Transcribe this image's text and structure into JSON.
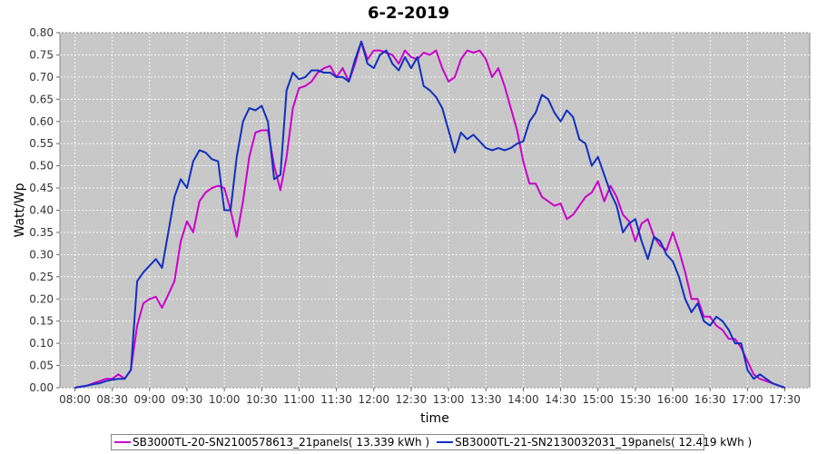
{
  "chart_data": {
    "type": "line",
    "title": "6-2-2019",
    "xlabel": "time",
    "ylabel": "Watt/Wp",
    "ylim": [
      0,
      0.8
    ],
    "xlim": [
      "07:48",
      "17:50"
    ],
    "grid": true,
    "legend_position": "bottom",
    "background": "#c8c8c8",
    "x_ticks": [
      "08:00",
      "08:30",
      "09:00",
      "09:30",
      "10:00",
      "10:30",
      "11:00",
      "11:30",
      "12:00",
      "12:30",
      "13:00",
      "13:30",
      "14:00",
      "14:30",
      "15:00",
      "15:30",
      "16:00",
      "16:30",
      "17:00",
      "17:30"
    ],
    "y_ticks": [
      "0.00",
      "0.05",
      "0.10",
      "0.15",
      "0.20",
      "0.25",
      "0.30",
      "0.35",
      "0.40",
      "0.45",
      "0.50",
      "0.55",
      "0.60",
      "0.65",
      "0.70",
      "0.75",
      "0.80"
    ],
    "series": [
      {
        "name": "SB3000TL-20-SN2100578613_21panels( 13.339 kWh )",
        "color": "#cc00cc",
        "points": [
          [
            "08:00",
            0.0
          ],
          [
            "08:10",
            0.005
          ],
          [
            "08:15",
            0.01
          ],
          [
            "08:20",
            0.015
          ],
          [
            "08:25",
            0.02
          ],
          [
            "08:30",
            0.02
          ],
          [
            "08:35",
            0.03
          ],
          [
            "08:40",
            0.02
          ],
          [
            "08:45",
            0.04
          ],
          [
            "08:50",
            0.14
          ],
          [
            "08:55",
            0.19
          ],
          [
            "09:00",
            0.2
          ],
          [
            "09:05",
            0.205
          ],
          [
            "09:10",
            0.18
          ],
          [
            "09:15",
            0.21
          ],
          [
            "09:20",
            0.24
          ],
          [
            "09:25",
            0.33
          ],
          [
            "09:30",
            0.375
          ],
          [
            "09:35",
            0.35
          ],
          [
            "09:40",
            0.42
          ],
          [
            "09:45",
            0.44
          ],
          [
            "09:50",
            0.45
          ],
          [
            "09:55",
            0.455
          ],
          [
            "10:00",
            0.45
          ],
          [
            "10:05",
            0.4
          ],
          [
            "10:10",
            0.34
          ],
          [
            "10:15",
            0.42
          ],
          [
            "10:20",
            0.52
          ],
          [
            "10:25",
            0.575
          ],
          [
            "10:30",
            0.58
          ],
          [
            "10:35",
            0.58
          ],
          [
            "10:40",
            0.5
          ],
          [
            "10:45",
            0.445
          ],
          [
            "10:50",
            0.52
          ],
          [
            "10:55",
            0.63
          ],
          [
            "11:00",
            0.675
          ],
          [
            "11:05",
            0.68
          ],
          [
            "11:10",
            0.69
          ],
          [
            "11:15",
            0.71
          ],
          [
            "11:20",
            0.72
          ],
          [
            "11:25",
            0.725
          ],
          [
            "11:30",
            0.7
          ],
          [
            "11:35",
            0.72
          ],
          [
            "11:40",
            0.69
          ],
          [
            "11:45",
            0.73
          ],
          [
            "11:50",
            0.78
          ],
          [
            "11:55",
            0.74
          ],
          [
            "12:00",
            0.76
          ],
          [
            "12:05",
            0.76
          ],
          [
            "12:10",
            0.755
          ],
          [
            "12:15",
            0.75
          ],
          [
            "12:20",
            0.73
          ],
          [
            "12:25",
            0.76
          ],
          [
            "12:30",
            0.745
          ],
          [
            "12:35",
            0.74
          ],
          [
            "12:40",
            0.755
          ],
          [
            "12:45",
            0.75
          ],
          [
            "12:50",
            0.76
          ],
          [
            "12:55",
            0.72
          ],
          [
            "13:00",
            0.69
          ],
          [
            "13:05",
            0.7
          ],
          [
            "13:10",
            0.74
          ],
          [
            "13:15",
            0.76
          ],
          [
            "13:20",
            0.755
          ],
          [
            "13:25",
            0.76
          ],
          [
            "13:30",
            0.74
          ],
          [
            "13:35",
            0.7
          ],
          [
            "13:40",
            0.72
          ],
          [
            "13:45",
            0.68
          ],
          [
            "13:50",
            0.63
          ],
          [
            "13:55",
            0.58
          ],
          [
            "14:00",
            0.51
          ],
          [
            "14:05",
            0.46
          ],
          [
            "14:10",
            0.46
          ],
          [
            "14:15",
            0.43
          ],
          [
            "14:20",
            0.42
          ],
          [
            "14:25",
            0.41
          ],
          [
            "14:30",
            0.415
          ],
          [
            "14:35",
            0.38
          ],
          [
            "14:40",
            0.39
          ],
          [
            "14:45",
            0.41
          ],
          [
            "14:50",
            0.43
          ],
          [
            "14:55",
            0.44
          ],
          [
            "15:00",
            0.465
          ],
          [
            "15:05",
            0.42
          ],
          [
            "15:10",
            0.455
          ],
          [
            "15:15",
            0.43
          ],
          [
            "15:20",
            0.39
          ],
          [
            "15:25",
            0.375
          ],
          [
            "15:30",
            0.33
          ],
          [
            "15:35",
            0.37
          ],
          [
            "15:40",
            0.38
          ],
          [
            "15:45",
            0.34
          ],
          [
            "15:50",
            0.32
          ],
          [
            "15:55",
            0.31
          ],
          [
            "16:00",
            0.35
          ],
          [
            "16:05",
            0.31
          ],
          [
            "16:10",
            0.26
          ],
          [
            "16:15",
            0.2
          ],
          [
            "16:20",
            0.2
          ],
          [
            "16:25",
            0.16
          ],
          [
            "16:30",
            0.16
          ],
          [
            "16:35",
            0.14
          ],
          [
            "16:40",
            0.13
          ],
          [
            "16:45",
            0.11
          ],
          [
            "16:50",
            0.11
          ],
          [
            "16:55",
            0.09
          ],
          [
            "17:00",
            0.06
          ],
          [
            "17:05",
            0.03
          ],
          [
            "17:10",
            0.02
          ],
          [
            "17:15",
            0.015
          ],
          [
            "17:20",
            0.01
          ],
          [
            "17:25",
            0.005
          ],
          [
            "17:30",
            0.0
          ]
        ]
      },
      {
        "name": "SB3000TL-21-SN2130032031_19panels( 12.419 kWh )",
        "color": "#1030c0",
        "points": [
          [
            "08:00",
            0.0
          ],
          [
            "08:10",
            0.005
          ],
          [
            "08:15",
            0.008
          ],
          [
            "08:20",
            0.01
          ],
          [
            "08:25",
            0.015
          ],
          [
            "08:30",
            0.018
          ],
          [
            "08:35",
            0.02
          ],
          [
            "08:40",
            0.02
          ],
          [
            "08:45",
            0.04
          ],
          [
            "08:50",
            0.24
          ],
          [
            "08:55",
            0.26
          ],
          [
            "09:00",
            0.275
          ],
          [
            "09:05",
            0.29
          ],
          [
            "09:10",
            0.27
          ],
          [
            "09:15",
            0.35
          ],
          [
            "09:20",
            0.43
          ],
          [
            "09:25",
            0.47
          ],
          [
            "09:30",
            0.45
          ],
          [
            "09:35",
            0.51
          ],
          [
            "09:40",
            0.535
          ],
          [
            "09:45",
            0.53
          ],
          [
            "09:50",
            0.515
          ],
          [
            "09:55",
            0.51
          ],
          [
            "10:00",
            0.4
          ],
          [
            "10:05",
            0.4
          ],
          [
            "10:10",
            0.52
          ],
          [
            "10:15",
            0.6
          ],
          [
            "10:20",
            0.63
          ],
          [
            "10:25",
            0.625
          ],
          [
            "10:30",
            0.635
          ],
          [
            "10:35",
            0.6
          ],
          [
            "10:40",
            0.47
          ],
          [
            "10:45",
            0.48
          ],
          [
            "10:50",
            0.67
          ],
          [
            "10:55",
            0.71
          ],
          [
            "11:00",
            0.695
          ],
          [
            "11:05",
            0.7
          ],
          [
            "11:10",
            0.715
          ],
          [
            "11:15",
            0.715
          ],
          [
            "11:20",
            0.71
          ],
          [
            "11:25",
            0.71
          ],
          [
            "11:30",
            0.7
          ],
          [
            "11:35",
            0.7
          ],
          [
            "11:40",
            0.69
          ],
          [
            "11:45",
            0.74
          ],
          [
            "11:50",
            0.78
          ],
          [
            "11:55",
            0.73
          ],
          [
            "12:00",
            0.72
          ],
          [
            "12:05",
            0.75
          ],
          [
            "12:10",
            0.76
          ],
          [
            "12:15",
            0.73
          ],
          [
            "12:20",
            0.715
          ],
          [
            "12:25",
            0.745
          ],
          [
            "12:30",
            0.72
          ],
          [
            "12:35",
            0.745
          ],
          [
            "12:40",
            0.68
          ],
          [
            "12:45",
            0.67
          ],
          [
            "12:50",
            0.655
          ],
          [
            "12:55",
            0.63
          ],
          [
            "13:00",
            0.58
          ],
          [
            "13:05",
            0.53
          ],
          [
            "13:10",
            0.575
          ],
          [
            "13:15",
            0.56
          ],
          [
            "13:20",
            0.57
          ],
          [
            "13:25",
            0.555
          ],
          [
            "13:30",
            0.54
          ],
          [
            "13:35",
            0.535
          ],
          [
            "13:40",
            0.54
          ],
          [
            "13:45",
            0.535
          ],
          [
            "13:50",
            0.54
          ],
          [
            "13:55",
            0.55
          ],
          [
            "14:00",
            0.555
          ],
          [
            "14:05",
            0.6
          ],
          [
            "14:10",
            0.62
          ],
          [
            "14:15",
            0.66
          ],
          [
            "14:20",
            0.65
          ],
          [
            "14:25",
            0.62
          ],
          [
            "14:30",
            0.6
          ],
          [
            "14:35",
            0.625
          ],
          [
            "14:40",
            0.61
          ],
          [
            "14:45",
            0.56
          ],
          [
            "14:50",
            0.55
          ],
          [
            "14:55",
            0.5
          ],
          [
            "15:00",
            0.52
          ],
          [
            "15:05",
            0.48
          ],
          [
            "15:10",
            0.44
          ],
          [
            "15:15",
            0.41
          ],
          [
            "15:20",
            0.35
          ],
          [
            "15:25",
            0.37
          ],
          [
            "15:30",
            0.38
          ],
          [
            "15:35",
            0.33
          ],
          [
            "15:40",
            0.29
          ],
          [
            "15:45",
            0.34
          ],
          [
            "15:50",
            0.33
          ],
          [
            "15:55",
            0.3
          ],
          [
            "16:00",
            0.285
          ],
          [
            "16:05",
            0.25
          ],
          [
            "16:10",
            0.2
          ],
          [
            "16:15",
            0.17
          ],
          [
            "16:20",
            0.19
          ],
          [
            "16:25",
            0.15
          ],
          [
            "16:30",
            0.14
          ],
          [
            "16:35",
            0.16
          ],
          [
            "16:40",
            0.15
          ],
          [
            "16:45",
            0.13
          ],
          [
            "16:50",
            0.1
          ],
          [
            "16:55",
            0.1
          ],
          [
            "17:00",
            0.04
          ],
          [
            "17:05",
            0.02
          ],
          [
            "17:10",
            0.03
          ],
          [
            "17:15",
            0.02
          ],
          [
            "17:20",
            0.01
          ],
          [
            "17:25",
            0.005
          ],
          [
            "17:30",
            0.0
          ]
        ]
      }
    ]
  }
}
